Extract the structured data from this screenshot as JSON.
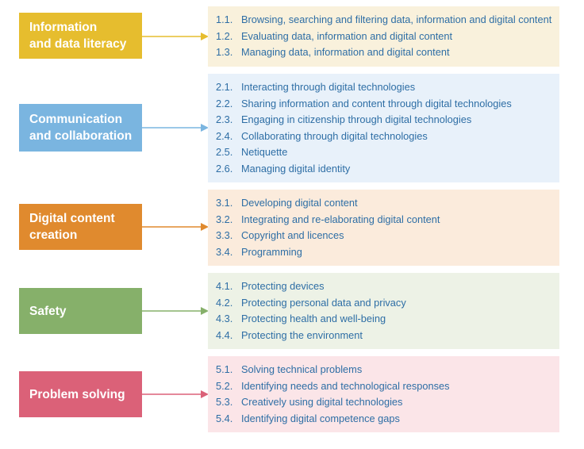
{
  "areas": [
    {
      "title": "Information\nand data literacy",
      "color": "#e6bd2e",
      "panel_color": "#f9f1dc",
      "competences": [
        {
          "num": "1.1.",
          "text": "Browsing, searching and filtering data, information and digital content"
        },
        {
          "num": "1.2.",
          "text": "Evaluating data, information and digital content"
        },
        {
          "num": "1.3.",
          "text": "Managing data, information and digital content"
        }
      ]
    },
    {
      "title": "Communication\nand collaboration",
      "color": "#7ab5e0",
      "panel_color": "#e8f1fa",
      "competences": [
        {
          "num": "2.1.",
          "text": "Interacting through digital technologies"
        },
        {
          "num": "2.2.",
          "text": "Sharing information and content through digital technologies"
        },
        {
          "num": "2.3.",
          "text": "Engaging in citizenship through digital technologies"
        },
        {
          "num": "2.4.",
          "text": "Collaborating through digital technologies"
        },
        {
          "num": "2.5.",
          "text": "Netiquette"
        },
        {
          "num": "2.6.",
          "text": "Managing digital identity"
        }
      ]
    },
    {
      "title": "Digital content\ncreation",
      "color": "#e08a2e",
      "panel_color": "#fbebdc",
      "competences": [
        {
          "num": "3.1.",
          "text": "Developing digital content"
        },
        {
          "num": "3.2.",
          "text": "Integrating and re-elaborating digital content"
        },
        {
          "num": "3.3.",
          "text": "Copyright and licences"
        },
        {
          "num": "3.4.",
          "text": "Programming"
        }
      ]
    },
    {
      "title": "Safety",
      "color": "#86b06a",
      "panel_color": "#edf2e6",
      "competences": [
        {
          "num": "4.1.",
          "text": "Protecting devices"
        },
        {
          "num": "4.2.",
          "text": "Protecting personal data and privacy"
        },
        {
          "num": "4.3.",
          "text": "Protecting health and well-being"
        },
        {
          "num": "4.4.",
          "text": "Protecting the environment"
        }
      ]
    },
    {
      "title": "Problem solving",
      "color": "#db6178",
      "panel_color": "#fbe5e8",
      "competences": [
        {
          "num": "5.1.",
          "text": "Solving technical problems"
        },
        {
          "num": "5.2.",
          "text": "Identifying needs and technological responses"
        },
        {
          "num": "5.3.",
          "text": "Creatively using digital technologies"
        },
        {
          "num": "5.4.",
          "text": "Identifying digital competence gaps"
        }
      ]
    }
  ]
}
